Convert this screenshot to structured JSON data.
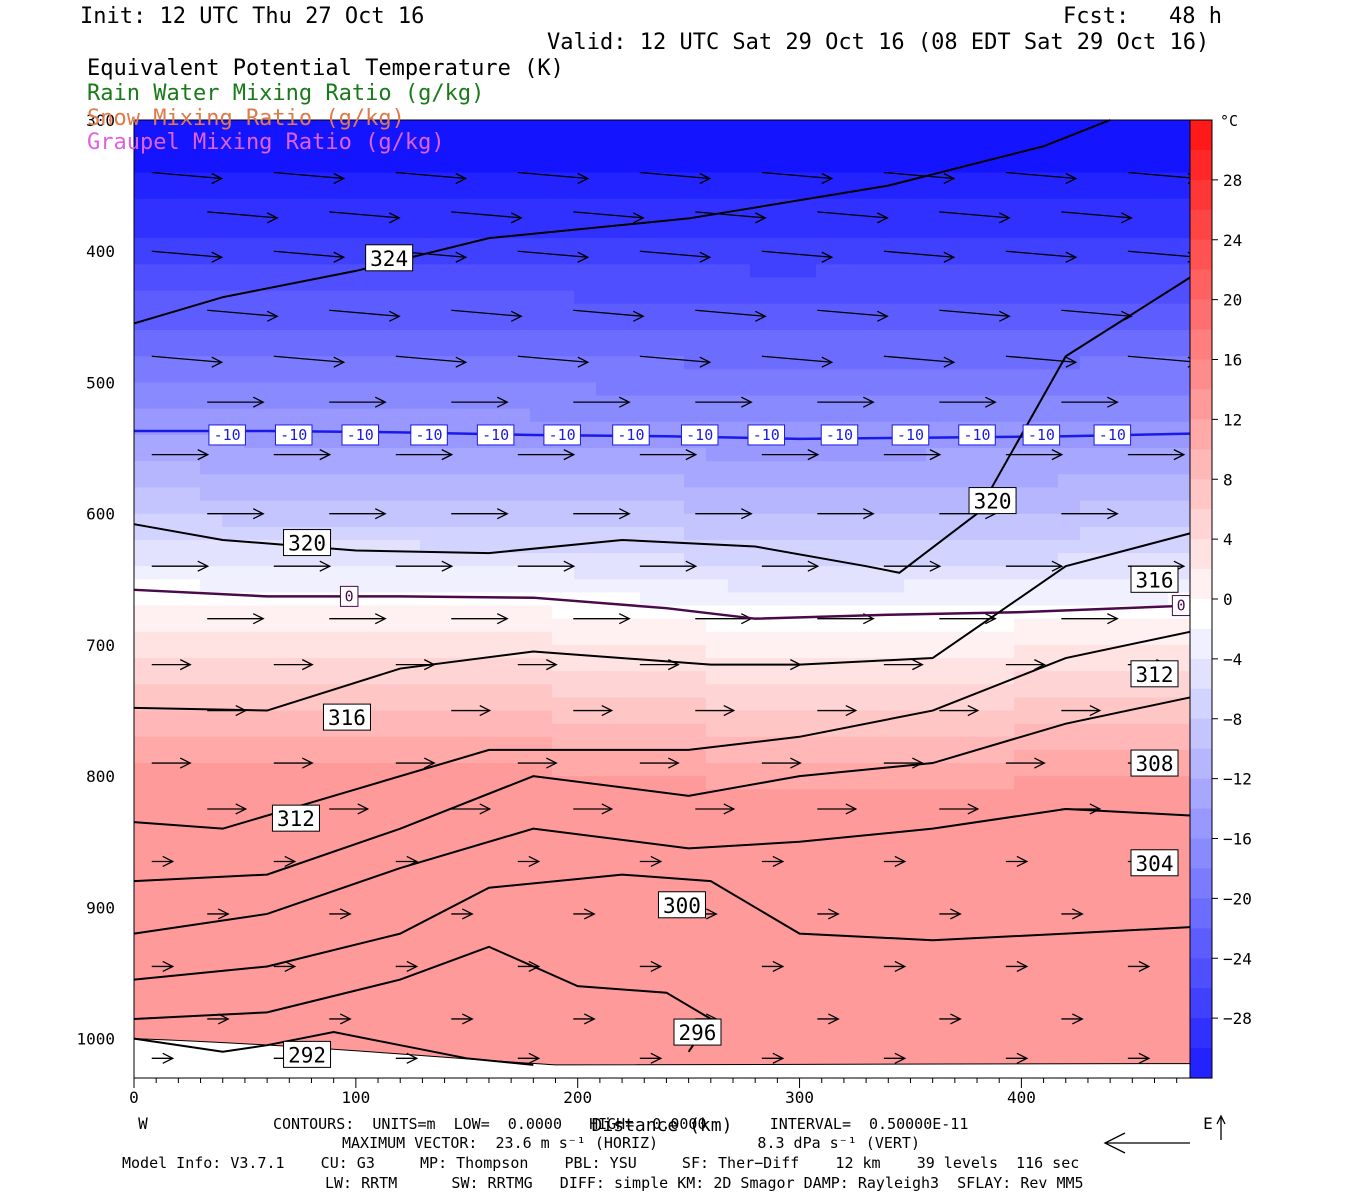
{
  "header": {
    "init": "Init: 12 UTC Thu 27 Oct 16",
    "fcst": "Fcst:   48 h",
    "valid": "Valid: 12 UTC Sat 29 Oct 16 (08 EDT Sat 29 Oct 16)"
  },
  "legend": [
    {
      "label": "Equivalent Potential Temperature (K)",
      "color": "#000000"
    },
    {
      "label": "Rain Water Mixing Ratio (g/kg)",
      "color": "#1a7a1a"
    },
    {
      "label": "Snow Mixing Ratio (g/kg)",
      "color": "#e07a4a"
    },
    {
      "label": "Graupel Mixing Ratio (g/kg)",
      "color": "#e060e0"
    }
  ],
  "chart_data": {
    "type": "heatmap",
    "description_fields": [
      "temperature shading (°C)",
      "theta-e contours (K)",
      "wind vectors"
    ],
    "xlabel": "Distance (km)",
    "x_ticks": [
      0,
      100,
      200,
      300,
      400
    ],
    "xlim": [
      0,
      476
    ],
    "x_end_labels": {
      "left": "W",
      "right": "E"
    },
    "ylabel": "",
    "y_ticks": [
      300,
      400,
      500,
      600,
      700,
      800,
      900,
      1000
    ],
    "y_tick_labels": [
      "300",
      "400",
      "500",
      "600",
      "700",
      "800",
      "900",
      "1000"
    ],
    "ylim": [
      300,
      1030
    ],
    "y_scale": "linear-pressure",
    "colorbar": {
      "unit": "°C",
      "ticks": [
        28,
        24,
        20,
        16,
        12,
        8,
        4,
        0,
        -4,
        -8,
        -12,
        -16,
        -20,
        -24,
        -28
      ],
      "range": [
        32,
        -32
      ],
      "warm_color": "#ff1a1a",
      "cold_color": "#1414ff"
    },
    "temperature_isotherms": [
      {
        "label": "-10",
        "color": "#1a1ae6",
        "x": [
          0,
          60,
          120,
          180,
          240,
          300,
          360,
          420,
          476
        ],
        "p": [
          537,
          537,
          538,
          540,
          541,
          543,
          542,
          541,
          539
        ]
      },
      {
        "label": "0",
        "color": "#4a0a4a",
        "x": [
          0,
          60,
          120,
          180,
          240,
          280,
          340,
          400,
          476
        ],
        "p": [
          658,
          663,
          663,
          664,
          672,
          680,
          677,
          675,
          670
        ]
      }
    ],
    "theta_e_contours": [
      {
        "label": "324",
        "x": [
          0,
          40,
          100,
          160,
          250,
          340,
          410,
          440
        ],
        "p": [
          455,
          435,
          415,
          390,
          375,
          350,
          320,
          300
        ]
      },
      {
        "label": "320",
        "x": [
          0,
          40,
          100,
          160,
          220,
          280,
          330,
          345,
          380,
          420,
          476
        ],
        "p": [
          608,
          620,
          628,
          630,
          620,
          625,
          640,
          645,
          600,
          480,
          420
        ]
      },
      {
        "label": "316",
        "x": [
          0,
          60,
          120,
          180,
          260,
          300,
          360,
          420,
          476
        ],
        "p": [
          748,
          750,
          718,
          705,
          715,
          715,
          710,
          640,
          615
        ]
      },
      {
        "label": "312",
        "x": [
          0,
          40,
          100,
          160,
          250,
          300,
          360,
          420,
          476
        ],
        "p": [
          835,
          840,
          810,
          780,
          780,
          770,
          750,
          710,
          690
        ]
      },
      {
        "label": "308",
        "x": [
          0,
          60,
          120,
          180,
          250,
          300,
          360,
          420,
          476
        ],
        "p": [
          880,
          875,
          840,
          800,
          815,
          800,
          790,
          760,
          740
        ]
      },
      {
        "label": "304",
        "x": [
          0,
          60,
          120,
          180,
          250,
          300,
          360,
          420,
          476
        ],
        "p": [
          920,
          905,
          870,
          840,
          855,
          850,
          840,
          825,
          830
        ]
      },
      {
        "label": "300",
        "x": [
          0,
          60,
          120,
          160,
          220,
          260,
          300,
          360,
          420,
          476
        ],
        "p": [
          955,
          945,
          920,
          885,
          875,
          880,
          920,
          925,
          920,
          915
        ]
      },
      {
        "label": "296",
        "x": [
          0,
          60,
          120,
          160,
          200,
          240,
          260,
          250
        ],
        "p": [
          985,
          980,
          955,
          930,
          960,
          965,
          985,
          1010
        ]
      },
      {
        "label": "292",
        "x": [
          0,
          40,
          60,
          90,
          120,
          150,
          180
        ],
        "p": [
          1000,
          1010,
          1005,
          995,
          1005,
          1015,
          1020
        ]
      }
    ],
    "contour_labels": [
      {
        "text": "324",
        "x": 115,
        "p": 405
      },
      {
        "text": "320",
        "x": 78,
        "p": 622
      },
      {
        "text": "320",
        "x": 387,
        "p": 590
      },
      {
        "text": "316",
        "x": 96,
        "p": 755
      },
      {
        "text": "316",
        "x": 460,
        "p": 650
      },
      {
        "text": "312",
        "x": 73,
        "p": 832
      },
      {
        "text": "312",
        "x": 460,
        "p": 722
      },
      {
        "text": "308",
        "x": 460,
        "p": 790
      },
      {
        "text": "304",
        "x": 460,
        "p": 866
      },
      {
        "text": "300",
        "x": 247,
        "p": 898
      },
      {
        "text": "296",
        "x": 254,
        "p": 995
      },
      {
        "text": "292",
        "x": 78,
        "p": 1012
      },
      {
        "text": "-10",
        "x": [
          42,
          72,
          102,
          133,
          163,
          193,
          224,
          255,
          285,
          318,
          350,
          380,
          409,
          441
        ],
        "p": 540
      },
      {
        "text": "0",
        "x": 97,
        "p": 663
      },
      {
        "text": "0",
        "x": 472,
        "p": 670
      }
    ]
  },
  "footer": {
    "contours": "CONTOURS:  UNITS=m  LOW=  0.0000   HIGH=  0.0000       INTERVAL=  0.50000E-11",
    "max_vector": "MAXIMUM VECTOR:  23.6 m s⁻¹ (HORIZ)           8.3 dPa s⁻¹ (VERT)",
    "model_info": "Model Info: V3.7.1    CU: G3     MP: Thompson    PBL: YSU     SF: Ther−Diff    12 km    39 levels  116 sec",
    "physics": "LW: RRTM      SW: RRTMG   DIFF: simple KM: 2D Smagor DAMP: Rayleigh3  SFLAY: Rev MM5"
  }
}
